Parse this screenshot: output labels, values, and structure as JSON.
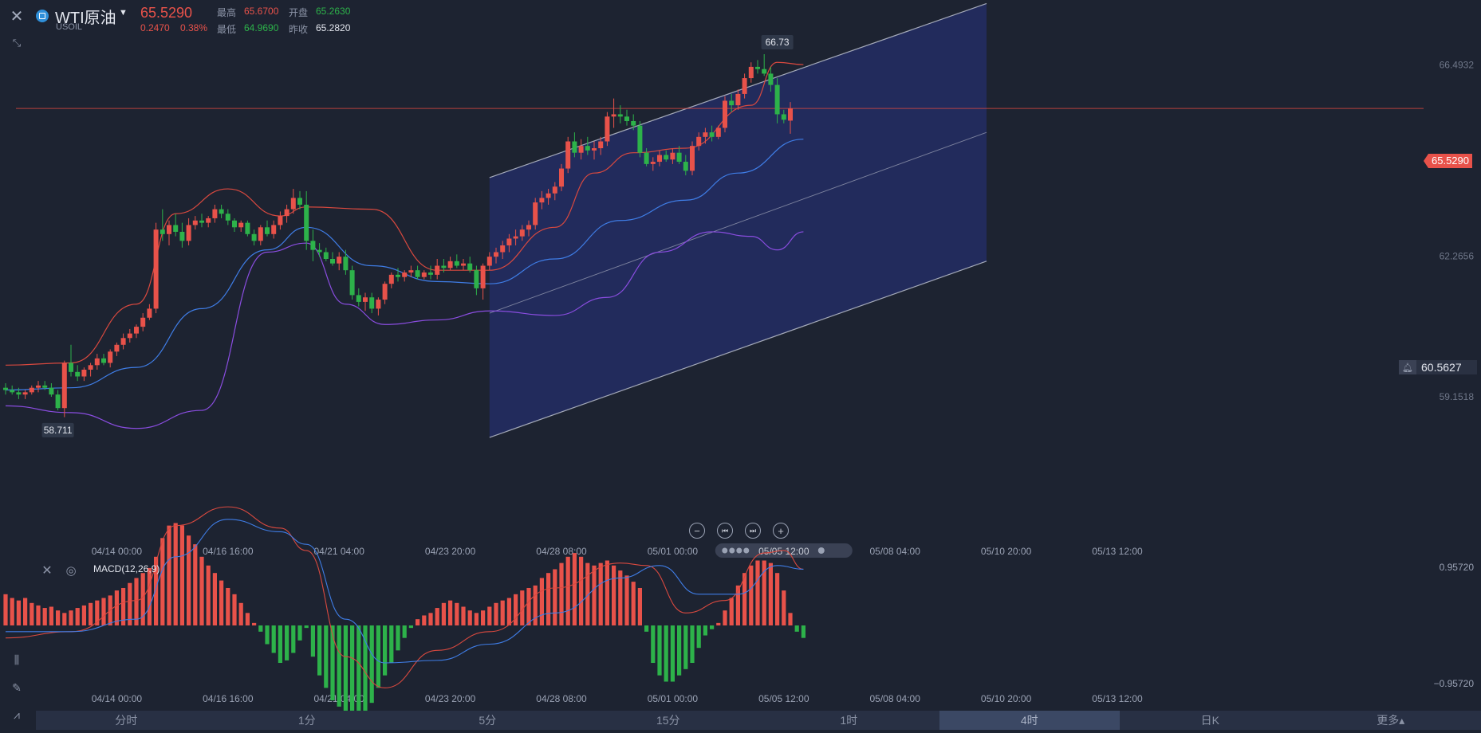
{
  "header": {
    "symbol_name": "WTI原油",
    "symbol_code": "USOIL",
    "last_price": "65.5290",
    "change": "0.2470",
    "change_pct": "0.38%",
    "high_label": "最高",
    "high_value": "65.6700",
    "open_label": "开盘",
    "open_value": "65.2630",
    "low_label": "最低",
    "low_value": "64.9690",
    "prev_close_label": "昨收",
    "prev_close_value": "65.2820"
  },
  "price_axis": {
    "ticks": [
      "66.4932",
      "62.2656",
      "59.1518"
    ],
    "last_price_tag": "65.5290",
    "alert_price_tag": "60.5627"
  },
  "annotations": {
    "high_marker": "66.73",
    "low_marker": "58.711"
  },
  "time_axis": [
    "04/14 00:00",
    "04/16 16:00",
    "04/21 04:00",
    "04/23 20:00",
    "04/28 08:00",
    "05/01 00:00",
    "05/05 12:00",
    "05/08 04:00",
    "05/10 20:00",
    "05/13 12:00"
  ],
  "crosshair_time": "05/05 12:00",
  "macd": {
    "label": "MACD(12,26,9)",
    "axis_top": "0.95720",
    "axis_bottom": "−0.95720"
  },
  "timeframes": [
    "分时",
    "1分",
    "5分",
    "15分",
    "1时",
    "4时",
    "日K",
    "更多▴"
  ],
  "active_timeframe": "4时",
  "colors": {
    "up": "#e8524a",
    "down": "#2db24a",
    "ma": "#3f7de6",
    "upper": "#d9493f",
    "lower": "#8a4de0",
    "channel": "#242f6b"
  },
  "chart_data": {
    "type": "candlestick",
    "symbol": "USOIL",
    "timeframe": "4时",
    "ylim": [
      57.0,
      67.4
    ],
    "x_ticks": [
      "04/14 00:00",
      "04/16 16:00",
      "04/21 04:00",
      "04/23 20:00",
      "04/28 08:00",
      "05/01 00:00",
      "05/05 12:00",
      "05/08 04:00",
      "05/10 20:00",
      "05/13 12:00"
    ],
    "candles_ohlc": [
      [
        59.35,
        59.45,
        59.2,
        59.3
      ],
      [
        59.3,
        59.4,
        59.2,
        59.25
      ],
      [
        59.25,
        59.35,
        59.1,
        59.2
      ],
      [
        59.2,
        59.3,
        59.1,
        59.25
      ],
      [
        59.25,
        59.4,
        59.2,
        59.35
      ],
      [
        59.35,
        59.5,
        59.25,
        59.4
      ],
      [
        59.4,
        59.5,
        59.3,
        59.35
      ],
      [
        59.35,
        59.45,
        59.15,
        59.2
      ],
      [
        59.2,
        59.3,
        58.85,
        58.9
      ],
      [
        58.9,
        59.95,
        58.7,
        59.9
      ],
      [
        59.9,
        60.3,
        59.6,
        59.7
      ],
      [
        59.7,
        59.85,
        59.5,
        59.6
      ],
      [
        59.6,
        59.8,
        59.5,
        59.75
      ],
      [
        59.75,
        59.9,
        59.6,
        59.85
      ],
      [
        59.85,
        60.1,
        59.75,
        60.0
      ],
      [
        60.0,
        60.1,
        59.85,
        59.9
      ],
      [
        59.9,
        60.2,
        59.8,
        60.15
      ],
      [
        60.15,
        60.35,
        60.05,
        60.3
      ],
      [
        60.3,
        60.55,
        60.2,
        60.45
      ],
      [
        60.45,
        60.65,
        60.35,
        60.55
      ],
      [
        60.55,
        60.75,
        60.45,
        60.7
      ],
      [
        60.7,
        61.0,
        60.6,
        60.9
      ],
      [
        60.9,
        61.2,
        60.85,
        61.1
      ],
      [
        61.1,
        63.0,
        61.0,
        62.85
      ],
      [
        62.85,
        63.3,
        62.6,
        62.75
      ],
      [
        62.75,
        63.05,
        62.5,
        62.95
      ],
      [
        62.95,
        63.2,
        62.7,
        62.8
      ],
      [
        62.8,
        63.0,
        62.45,
        62.6
      ],
      [
        62.6,
        63.1,
        62.5,
        62.95
      ],
      [
        62.95,
        63.15,
        62.85,
        63.05
      ],
      [
        63.05,
        63.2,
        62.9,
        63.0
      ],
      [
        63.0,
        63.15,
        62.9,
        63.1
      ],
      [
        63.1,
        63.4,
        63.0,
        63.3
      ],
      [
        63.3,
        63.4,
        63.1,
        63.2
      ],
      [
        63.2,
        63.3,
        62.95,
        63.05
      ],
      [
        63.05,
        63.1,
        62.8,
        62.9
      ],
      [
        62.9,
        63.05,
        62.8,
        63.0
      ],
      [
        63.0,
        63.05,
        62.7,
        62.75
      ],
      [
        62.75,
        62.85,
        62.5,
        62.6
      ],
      [
        62.6,
        62.95,
        62.5,
        62.9
      ],
      [
        62.9,
        63.05,
        62.7,
        62.75
      ],
      [
        62.75,
        63.05,
        62.65,
        62.95
      ],
      [
        62.95,
        63.25,
        62.85,
        63.15
      ],
      [
        63.15,
        63.4,
        63.0,
        63.3
      ],
      [
        63.3,
        63.75,
        63.2,
        63.55
      ],
      [
        63.55,
        63.7,
        63.3,
        63.4
      ],
      [
        63.4,
        63.7,
        62.4,
        62.6
      ],
      [
        62.6,
        62.85,
        62.15,
        62.4
      ],
      [
        62.4,
        62.55,
        62.25,
        62.35
      ],
      [
        62.35,
        62.45,
        62.15,
        62.2
      ],
      [
        62.2,
        62.35,
        62.05,
        62.1
      ],
      [
        62.1,
        62.35,
        61.95,
        62.25
      ],
      [
        62.25,
        62.4,
        61.85,
        61.95
      ],
      [
        61.95,
        62.05,
        61.3,
        61.4
      ],
      [
        61.4,
        61.55,
        61.15,
        61.25
      ],
      [
        61.25,
        61.45,
        61.05,
        61.35
      ],
      [
        61.35,
        61.45,
        61.0,
        61.1
      ],
      [
        61.1,
        61.35,
        60.95,
        61.3
      ],
      [
        61.3,
        61.7,
        61.2,
        61.65
      ],
      [
        61.65,
        61.9,
        61.55,
        61.85
      ],
      [
        61.85,
        62.0,
        61.7,
        61.8
      ],
      [
        61.8,
        61.95,
        61.7,
        61.9
      ],
      [
        61.9,
        62.05,
        61.8,
        61.95
      ],
      [
        61.95,
        62.05,
        61.75,
        61.8
      ],
      [
        61.8,
        61.95,
        61.75,
        61.9
      ],
      [
        61.9,
        62.05,
        61.75,
        61.85
      ],
      [
        61.85,
        62.2,
        61.75,
        62.05
      ],
      [
        62.05,
        62.2,
        61.9,
        62.0
      ],
      [
        62.0,
        62.25,
        61.95,
        62.15
      ],
      [
        62.15,
        62.3,
        62.0,
        62.05
      ],
      [
        62.05,
        62.2,
        61.95,
        62.1
      ],
      [
        62.1,
        62.25,
        61.9,
        61.95
      ],
      [
        61.95,
        62.05,
        61.4,
        61.55
      ],
      [
        61.55,
        62.1,
        61.3,
        62.05
      ],
      [
        62.05,
        62.35,
        61.95,
        62.25
      ],
      [
        62.25,
        62.45,
        62.1,
        62.35
      ],
      [
        62.35,
        62.6,
        62.2,
        62.5
      ],
      [
        62.5,
        62.75,
        62.35,
        62.65
      ],
      [
        62.65,
        62.85,
        62.5,
        62.7
      ],
      [
        62.7,
        62.95,
        62.6,
        62.85
      ],
      [
        62.85,
        63.05,
        62.7,
        62.95
      ],
      [
        62.95,
        63.55,
        62.85,
        63.45
      ],
      [
        63.45,
        63.7,
        63.3,
        63.55
      ],
      [
        63.55,
        63.75,
        63.4,
        63.65
      ],
      [
        63.65,
        63.9,
        63.5,
        63.8
      ],
      [
        63.8,
        64.3,
        63.7,
        64.2
      ],
      [
        64.2,
        64.9,
        64.1,
        64.8
      ],
      [
        64.8,
        65.0,
        64.45,
        64.55
      ],
      [
        64.55,
        64.85,
        64.4,
        64.7
      ],
      [
        64.7,
        64.9,
        64.5,
        64.6
      ],
      [
        64.6,
        64.8,
        64.4,
        64.65
      ],
      [
        64.65,
        64.9,
        64.5,
        64.8
      ],
      [
        64.8,
        65.45,
        64.7,
        65.35
      ],
      [
        65.35,
        65.75,
        65.1,
        65.4
      ],
      [
        65.4,
        65.6,
        65.2,
        65.35
      ],
      [
        65.35,
        65.5,
        65.15,
        65.25
      ],
      [
        65.25,
        65.4,
        65.05,
        65.15
      ],
      [
        65.15,
        65.25,
        64.45,
        64.55
      ],
      [
        64.55,
        64.65,
        64.25,
        64.3
      ],
      [
        64.3,
        64.45,
        64.15,
        64.35
      ],
      [
        64.35,
        64.6,
        64.25,
        64.5
      ],
      [
        64.5,
        64.6,
        64.35,
        64.4
      ],
      [
        64.4,
        64.65,
        64.3,
        64.55
      ],
      [
        64.55,
        64.7,
        64.3,
        64.35
      ],
      [
        64.35,
        64.5,
        64.05,
        64.15
      ],
      [
        64.15,
        64.8,
        64.05,
        64.7
      ],
      [
        64.7,
        65.0,
        64.6,
        64.9
      ],
      [
        64.9,
        65.1,
        64.75,
        65.0
      ],
      [
        65.0,
        65.15,
        64.8,
        64.9
      ],
      [
        64.9,
        65.15,
        64.85,
        65.1
      ],
      [
        65.1,
        65.8,
        65.0,
        65.7
      ],
      [
        65.7,
        65.85,
        65.45,
        65.6
      ],
      [
        65.6,
        65.95,
        65.5,
        65.85
      ],
      [
        65.85,
        66.3,
        65.75,
        66.2
      ],
      [
        66.2,
        66.55,
        66.1,
        66.45
      ],
      [
        66.45,
        66.6,
        66.3,
        66.4
      ],
      [
        66.4,
        66.73,
        66.25,
        66.3
      ],
      [
        66.3,
        66.45,
        65.9,
        66.05
      ],
      [
        66.05,
        66.2,
        65.2,
        65.4
      ],
      [
        65.4,
        65.5,
        65.2,
        65.28
      ],
      [
        65.26,
        65.67,
        64.97,
        65.53
      ]
    ],
    "bollinger": {
      "middle": [
        [
          0,
          59.3
        ],
        [
          10,
          59.35
        ],
        [
          20,
          59.8
        ],
        [
          30,
          61.1
        ],
        [
          40,
          62.4
        ],
        [
          46,
          62.9
        ],
        [
          56,
          62.05
        ],
        [
          66,
          61.7
        ],
        [
          74,
          61.65
        ],
        [
          84,
          62.2
        ],
        [
          94,
          63.05
        ],
        [
          104,
          63.5
        ],
        [
          112,
          64.1
        ],
        [
          122,
          64.85
        ]
      ],
      "upper": [
        [
          0,
          59.85
        ],
        [
          10,
          59.9
        ],
        [
          20,
          61.2
        ],
        [
          26,
          63.2
        ],
        [
          34,
          63.75
        ],
        [
          42,
          63.15
        ],
        [
          46,
          63.35
        ],
        [
          56,
          63.3
        ],
        [
          66,
          61.95
        ],
        [
          74,
          61.95
        ],
        [
          84,
          62.9
        ],
        [
          90,
          64.1
        ],
        [
          96,
          64.55
        ],
        [
          104,
          64.65
        ],
        [
          114,
          65.6
        ],
        [
          118,
          66.55
        ],
        [
          122,
          66.5
        ]
      ],
      "lower": [
        [
          0,
          58.95
        ],
        [
          10,
          58.8
        ],
        [
          20,
          58.45
        ],
        [
          30,
          58.85
        ],
        [
          40,
          62.35
        ],
        [
          46,
          62.55
        ],
        [
          52,
          61.2
        ],
        [
          58,
          60.75
        ],
        [
          66,
          60.85
        ],
        [
          74,
          61.05
        ],
        [
          84,
          60.95
        ],
        [
          92,
          61.35
        ],
        [
          100,
          62.35
        ],
        [
          108,
          62.8
        ],
        [
          114,
          62.7
        ],
        [
          118,
          62.4
        ],
        [
          122,
          62.8
        ]
      ]
    },
    "regression_channel": {
      "start_index": 74,
      "end_index": 150,
      "upper": [
        64.0,
        67.85
      ],
      "middle": [
        61.0,
        65.0
      ],
      "lower": [
        58.25,
        62.15
      ]
    },
    "last_price": 65.529,
    "alert_price": 60.5627,
    "macd": {
      "histogram_start_index": 0,
      "histogram": [
        0.25,
        0.22,
        0.2,
        0.22,
        0.18,
        0.16,
        0.14,
        0.15,
        0.12,
        0.1,
        0.12,
        0.14,
        0.16,
        0.18,
        0.2,
        0.22,
        0.24,
        0.28,
        0.3,
        0.34,
        0.38,
        0.42,
        0.46,
        0.55,
        0.7,
        0.8,
        0.82,
        0.8,
        0.72,
        0.65,
        0.55,
        0.48,
        0.42,
        0.36,
        0.3,
        0.25,
        0.18,
        0.1,
        0.02,
        -0.05,
        -0.15,
        -0.22,
        -0.3,
        -0.28,
        -0.22,
        -0.12,
        -0.02,
        -0.25,
        -0.4,
        -0.5,
        -0.6,
        -0.65,
        -0.7,
        -0.75,
        -0.75,
        -0.7,
        -0.62,
        -0.5,
        -0.4,
        -0.3,
        -0.2,
        -0.1,
        -0.02,
        0.05,
        0.08,
        0.1,
        0.14,
        0.18,
        0.2,
        0.18,
        0.15,
        0.12,
        0.1,
        0.12,
        0.15,
        0.18,
        0.2,
        0.22,
        0.25,
        0.28,
        0.3,
        0.32,
        0.38,
        0.42,
        0.45,
        0.5,
        0.55,
        0.58,
        0.55,
        0.5,
        0.48,
        0.5,
        0.52,
        0.48,
        0.44,
        0.4,
        0.35,
        0.3,
        -0.05,
        -0.3,
        -0.4,
        -0.45,
        -0.45,
        -0.4,
        -0.35,
        -0.3,
        -0.18,
        -0.08,
        -0.03,
        0.02,
        0.12,
        0.22,
        0.32,
        0.42,
        0.48,
        0.52,
        0.52,
        0.5,
        0.42,
        0.28,
        0.1,
        -0.05,
        -0.1
      ],
      "dif": [
        [
          0,
          -0.1
        ],
        [
          10,
          -0.05
        ],
        [
          20,
          0.2
        ],
        [
          26,
          0.8
        ],
        [
          34,
          0.95
        ],
        [
          42,
          0.78
        ],
        [
          46,
          0.6
        ],
        [
          52,
          -0.25
        ],
        [
          58,
          -0.5
        ],
        [
          66,
          -0.2
        ],
        [
          74,
          -0.05
        ],
        [
          84,
          0.3
        ],
        [
          94,
          0.5
        ],
        [
          98,
          0.48
        ],
        [
          104,
          0.1
        ],
        [
          110,
          0.2
        ],
        [
          116,
          0.58
        ],
        [
          119,
          0.6
        ],
        [
          122,
          0.45
        ]
      ],
      "dea": [
        [
          0,
          -0.05
        ],
        [
          10,
          -0.05
        ],
        [
          20,
          0.05
        ],
        [
          26,
          0.55
        ],
        [
          34,
          0.85
        ],
        [
          42,
          0.75
        ],
        [
          46,
          0.65
        ],
        [
          52,
          0.05
        ],
        [
          58,
          -0.3
        ],
        [
          66,
          -0.28
        ],
        [
          74,
          -0.15
        ],
        [
          84,
          0.1
        ],
        [
          94,
          0.38
        ],
        [
          100,
          0.48
        ],
        [
          106,
          0.25
        ],
        [
          112,
          0.25
        ],
        [
          118,
          0.48
        ],
        [
          122,
          0.45
        ]
      ],
      "ylim": [
        -0.9572,
        0.9572
      ]
    }
  }
}
